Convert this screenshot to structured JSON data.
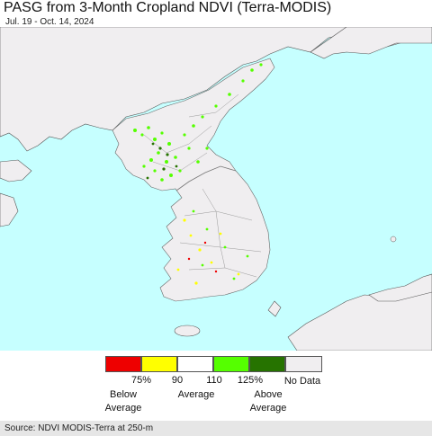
{
  "title": "PASG from 3-Month Cropland NDVI (Terra-MODIS)",
  "subtitle": "Jul. 19 - Oct. 14, 2024",
  "colors": {
    "ocean": "#c6ffff",
    "land": "#f0eef0",
    "border": "#888888"
  },
  "legend": {
    "swatches": [
      {
        "color": "#ee0000"
      },
      {
        "color": "#ffff00"
      },
      {
        "color": "#ffffff"
      },
      {
        "color": "#55ff00"
      },
      {
        "color": "#267300"
      },
      {
        "color": "#f0eef0"
      }
    ],
    "ticks": [
      "75%",
      "90",
      "110",
      "125%"
    ],
    "categories": {
      "below": "Below\nAverage",
      "average": "Average",
      "above": "Above\nAverage",
      "nodata": "No Data"
    }
  },
  "source": "Source: NDVI MODIS-Terra at 250-m"
}
